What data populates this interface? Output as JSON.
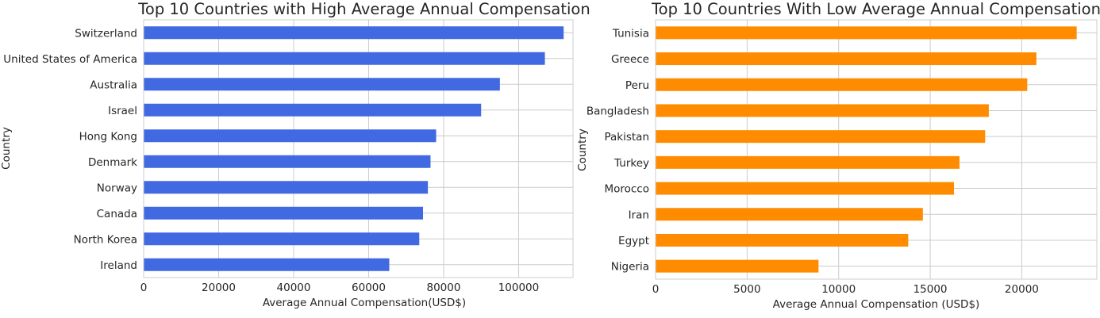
{
  "colors": {
    "high_bar": "#4169E1",
    "low_bar": "#FF8C00",
    "grid": "#cccccc",
    "spine": "#cccccc",
    "text": "#262626"
  },
  "chart_data": [
    {
      "type": "bar",
      "orientation": "horizontal",
      "title": "Top 10 Countries with High Average Annual Compensation",
      "xlabel": "Average Annual Compensation(USD$)",
      "ylabel": "Country",
      "xlim": [
        0,
        114500
      ],
      "xticks": [
        0,
        20000,
        40000,
        60000,
        80000,
        100000
      ],
      "xtick_labels": [
        "0",
        "20000",
        "40000",
        "60000",
        "80000",
        "100000"
      ],
      "grid": true,
      "bar_color": "#4169E1",
      "categories": [
        "Switzerland",
        "United States of America",
        "Australia",
        "Israel",
        "Hong Kong",
        "Denmark",
        "Norway",
        "Canada",
        "North Korea",
        "Ireland"
      ],
      "values": [
        112000,
        107000,
        95000,
        90000,
        78000,
        76500,
        75800,
        74500,
        73500,
        65500
      ]
    },
    {
      "type": "bar",
      "orientation": "horizontal",
      "title": "Top 10 Countries With Low Average Annual Compensation",
      "xlabel": "Average Annual Compensation (USD$)",
      "ylabel": "Country",
      "xlim": [
        0,
        24100
      ],
      "xticks": [
        0,
        5000,
        10000,
        15000,
        20000
      ],
      "xtick_labels": [
        "0",
        "5000",
        "10000",
        "15000",
        "20000"
      ],
      "grid": true,
      "bar_color": "#FF8C00",
      "categories": [
        "Tunisia",
        "Greece",
        "Peru",
        "Bangladesh",
        "Pakistan",
        "Turkey",
        "Morocco",
        "Iran",
        "Egypt",
        "Nigeria"
      ],
      "values": [
        23000,
        20800,
        20300,
        18200,
        18000,
        16600,
        16300,
        14600,
        13800,
        8900
      ]
    }
  ]
}
